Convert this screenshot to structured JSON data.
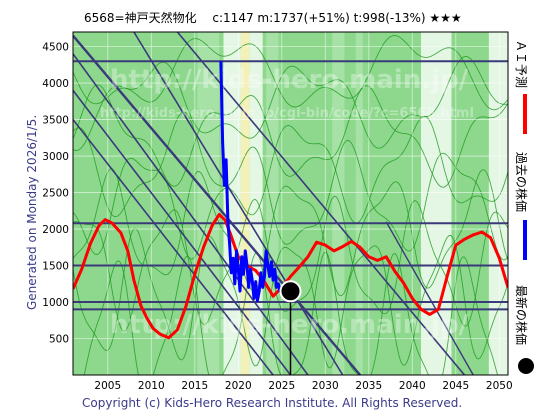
{
  "header": {
    "title": "6568=神戸天然物化　 c:1147  m:1737(+51%)  t:998(-13%)  ★★★"
  },
  "side_labels": {
    "generated": "Generated on Monday 2026/1/5.",
    "ai_forecast": "ＡＩ予測",
    "past_price": "過去の株価",
    "latest_price": "最新の株価"
  },
  "footer": {
    "copyright": "Copyright (c) Kids-Hero Research Institute. All Rights Reserved."
  },
  "watermark": {
    "line1": "http://kids-hero.main.jp/",
    "line2": "http://kids-hero.main.jp/cgi-bin/code/?c=6568.html"
  },
  "colors": {
    "ai_forecast": "#ff0000",
    "past_price": "#0000ff",
    "latest_price": "#000000",
    "background_green": "#8ed88e",
    "light_band": "#e4f6e4",
    "cream_band": "#f3f0b8",
    "trend_line": "#3a3a7a"
  },
  "chart_data": {
    "type": "line",
    "xlim": [
      2001,
      2051
    ],
    "ylim": [
      0,
      4700
    ],
    "x_ticks": [
      2005,
      2010,
      2015,
      2020,
      2025,
      2030,
      2035,
      2040,
      2045,
      2050
    ],
    "y_ticks": [
      500,
      1000,
      1500,
      2000,
      2500,
      3000,
      3500,
      4000,
      4500
    ],
    "grid": true,
    "horizontal_levels": [
      900,
      1000,
      1500,
      2080,
      4300
    ],
    "latest": {
      "x": 2026.0,
      "y": 1147
    },
    "series": [
      {
        "name": "ＡＩ予測",
        "x": [
          2001.0,
          2002.0,
          2003.0,
          2004.0,
          2004.7,
          2005.5,
          2006.5,
          2007.3,
          2008.0,
          2008.8,
          2009.5,
          2010.2,
          2011.0,
          2012.0,
          2013.0,
          2014.0,
          2015.0,
          2016.0,
          2017.0,
          2017.8,
          2018.5,
          2019.2,
          2020.0,
          2021.0,
          2022.0,
          2023.0,
          2024.0,
          2025.0,
          2026.0,
          2027.0,
          2028.0,
          2029.0,
          2030.0,
          2031.0,
          2032.0,
          2033.0,
          2034.0,
          2035.0,
          2036.0,
          2037.0,
          2038.0,
          2039.0,
          2040.0,
          2041.0,
          2042.0,
          2043.0,
          2044.0,
          2045.0,
          2046.0,
          2047.0,
          2048.0,
          2049.0,
          2050.0,
          2051.0
        ],
        "values": [
          1180,
          1450,
          1800,
          2050,
          2130,
          2080,
          1950,
          1700,
          1300,
          950,
          780,
          640,
          560,
          510,
          620,
          950,
          1380,
          1750,
          2050,
          2200,
          2120,
          1900,
          1620,
          1500,
          1430,
          1280,
          1080,
          1200,
          1350,
          1480,
          1620,
          1820,
          1780,
          1700,
          1760,
          1830,
          1750,
          1620,
          1570,
          1620,
          1420,
          1260,
          1050,
          900,
          830,
          900,
          1350,
          1780,
          1860,
          1920,
          1960,
          1880,
          1600,
          1200
        ]
      },
      {
        "name": "過去の株価",
        "x": [
          2018.0,
          2018.2,
          2018.4,
          2018.6,
          2018.8,
          2019.0,
          2019.2,
          2019.4,
          2019.6,
          2019.8,
          2020.0,
          2020.2,
          2020.4,
          2020.6,
          2020.8,
          2021.0,
          2021.2,
          2021.4,
          2021.6,
          2021.8,
          2022.0,
          2022.2,
          2022.4,
          2022.6,
          2022.8,
          2023.0,
          2023.2,
          2023.4,
          2023.6,
          2023.8,
          2024.0,
          2024.2,
          2024.4,
          2024.6,
          2024.8,
          2025.0,
          2025.2,
          2025.4,
          2025.6,
          2025.8,
          2026.0
        ],
        "values": [
          4300,
          3200,
          2600,
          2950,
          2100,
          1800,
          1400,
          1600,
          1250,
          1700,
          1450,
          1150,
          1620,
          1380,
          1700,
          1500,
          1200,
          1450,
          1300,
          1050,
          1280,
          1020,
          1150,
          1400,
          1200,
          1350,
          1700,
          1500,
          1350,
          1550,
          1300,
          1450,
          1200,
          1250,
          1150,
          1180,
          1100,
          1220,
          1150,
          1190,
          1147
        ]
      }
    ]
  }
}
